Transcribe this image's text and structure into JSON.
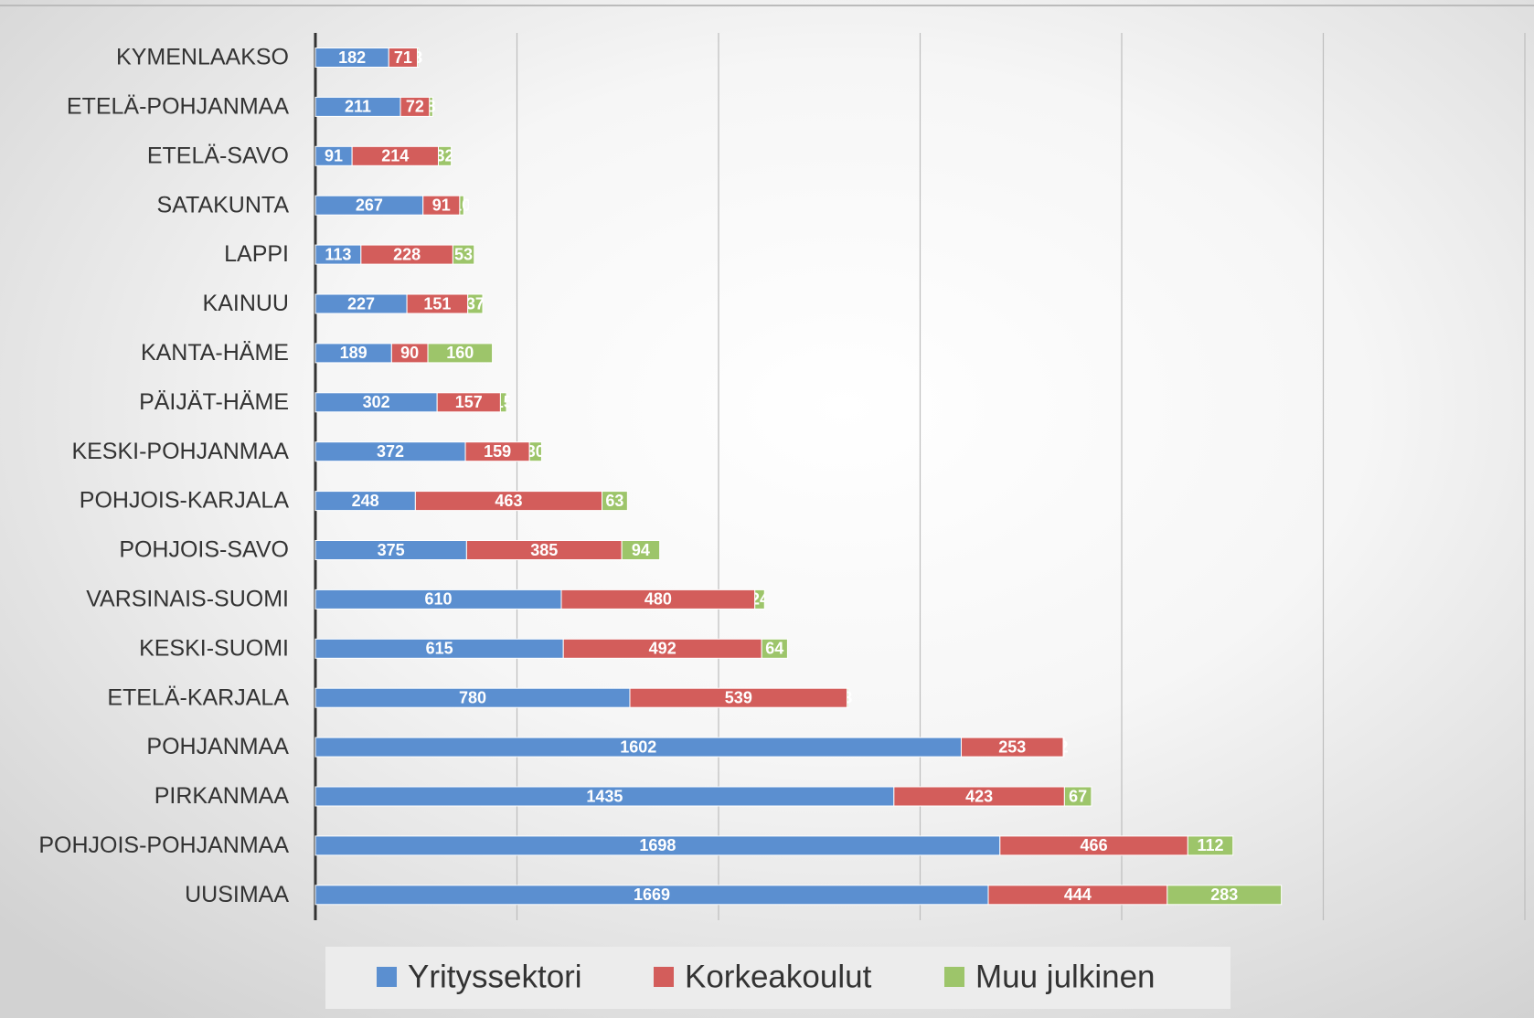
{
  "chart_data": {
    "type": "bar",
    "orientation": "horizontal",
    "stacked": true,
    "categories": [
      "KYMENLAAKSO",
      "ETELÄ-POHJANMAA",
      "ETELÄ-SAVO",
      "SATAKUNTA",
      "LAPPI",
      "KAINUU",
      "KANTA-HÄME",
      "PÄIJÄT-HÄME",
      "KESKI-POHJANMAA",
      "POHJOIS-KARJALA",
      "POHJOIS-SAVO",
      "VARSINAIS-SUOMI",
      "KESKI-SUOMI",
      "ETELÄ-KARJALA",
      "POHJANMAA",
      "PIRKANMAA",
      "POHJOIS-POHJANMAA",
      "UUSIMAA"
    ],
    "series": [
      {
        "name": "Yrityssektori",
        "color": "#5b8fd0",
        "values": [
          182,
          211,
          91,
          267,
          113,
          227,
          189,
          302,
          372,
          248,
          375,
          610,
          615,
          780,
          1602,
          1435,
          1698,
          1669
        ]
      },
      {
        "name": "Korkeakoulut",
        "color": "#d35d5b",
        "values": [
          71,
          72,
          214,
          91,
          228,
          151,
          90,
          157,
          159,
          463,
          385,
          480,
          492,
          539,
          253,
          423,
          466,
          444
        ]
      },
      {
        "name": "Muu julkinen",
        "color": "#9dc56a",
        "values": [
          3,
          8,
          32,
          10,
          53,
          37,
          160,
          15,
          30,
          63,
          94,
          24,
          64,
          3,
          2,
          67,
          112,
          283
        ]
      }
    ],
    "xlim": [
      0,
      3000
    ],
    "xticks": [
      0,
      500,
      1000,
      1500,
      2000,
      2500,
      3000
    ],
    "grid": true,
    "legend": "bottom"
  }
}
